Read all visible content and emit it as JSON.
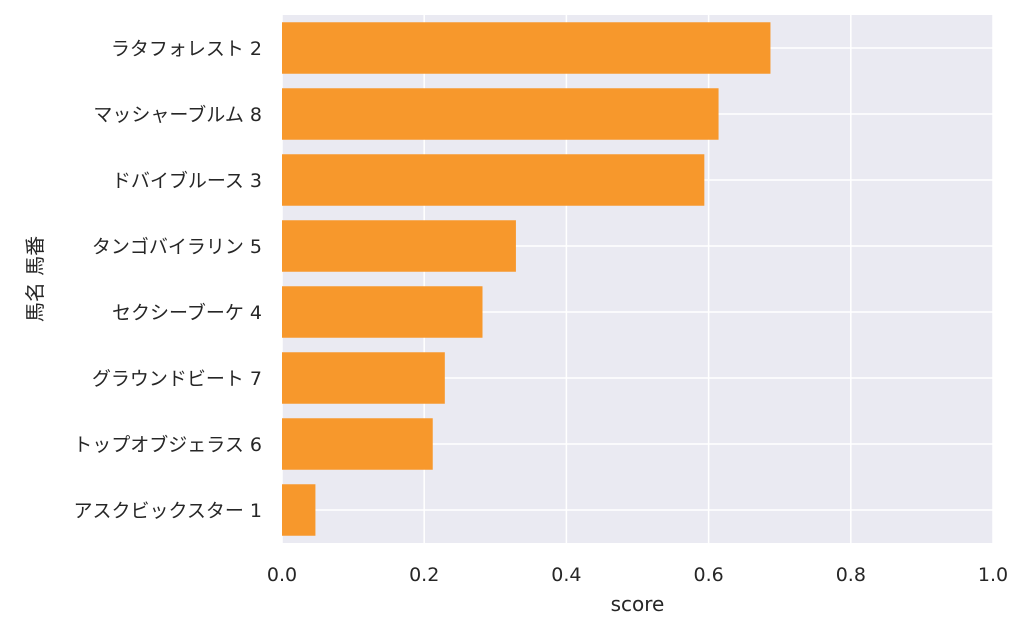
{
  "chart_data": {
    "type": "bar",
    "orientation": "horizontal",
    "categories": [
      "ラタフォレスト 2",
      "マッシャーブルム 8",
      "ドバイブルース 3",
      "タンゴバイラリン 5",
      "セクシーブーケ 4",
      "グラウンドビート 7",
      "トップオブジェラス 6",
      "アスクビックスター 1"
    ],
    "values": [
      0.687,
      0.614,
      0.594,
      0.329,
      0.282,
      0.229,
      0.212,
      0.047
    ],
    "xlabel": "score",
    "ylabel": "馬名 馬番",
    "xlim": [
      0.0,
      1.0
    ],
    "xticks": [
      "0.0",
      "0.2",
      "0.4",
      "0.6",
      "0.8",
      "1.0"
    ],
    "grid": true,
    "colors": {
      "bar": "#f7982c",
      "plot_background": "#eaeaf2",
      "grid": "#ffffff",
      "text": "#262626"
    }
  }
}
